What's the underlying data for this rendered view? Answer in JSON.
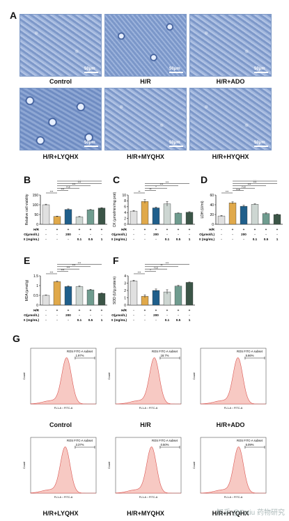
{
  "panel_labels": {
    "A": "A",
    "B": "B",
    "C": "C",
    "D": "D",
    "E": "E",
    "F": "F",
    "G": "G"
  },
  "microscopy": {
    "scale": "50μm",
    "images": [
      {
        "label": "Control"
      },
      {
        "label": "H/R"
      },
      {
        "label": "H/R+ADO"
      },
      {
        "label": "H/R+LYQHX"
      },
      {
        "label": "H/R+MYQHX"
      },
      {
        "label": "H/R+HYQHX"
      }
    ]
  },
  "groups": {
    "rows": [
      "H/R",
      "ADO(μmol/L)",
      "YQHX (mg/mL)"
    ],
    "hr": [
      "-",
      "+",
      "+",
      "+",
      "+",
      "+"
    ],
    "ado": [
      "-",
      "-",
      "200",
      "-",
      "-",
      "-"
    ],
    "yqhx": [
      "-",
      "-",
      "-",
      "0.1",
      "0.5",
      "1"
    ]
  },
  "colors": [
    "#e0e0e0",
    "#e0a94a",
    "#1f5f8b",
    "#cdd6d2",
    "#6f9c8f",
    "#3b5547"
  ],
  "chart_data": [
    {
      "type": "bar",
      "panel": "B",
      "ylabel": "Relative cell viability",
      "ylim": [
        0,
        150
      ],
      "ticks": [
        0,
        50,
        100,
        150
      ],
      "values": [
        100,
        40,
        76,
        38,
        74,
        83
      ],
      "errors": [
        3,
        2,
        3,
        2,
        2,
        2
      ],
      "sig": [
        "***",
        "***",
        "n.s",
        "***",
        "***",
        "***"
      ]
    },
    {
      "type": "bar",
      "panel": "C",
      "ylabel": "CK (μmol/min/mg prot)",
      "ylim": [
        0,
        10
      ],
      "ticks": [
        0,
        2,
        4,
        6,
        8,
        10
      ],
      "values": [
        4.5,
        7.8,
        5.6,
        7.0,
        3.8,
        4.1
      ],
      "errors": [
        0.2,
        0.6,
        0.3,
        0.8,
        0.1,
        0.2
      ],
      "sig": [
        "**",
        "**",
        "*",
        "***",
        "***"
      ]
    },
    {
      "type": "bar",
      "panel": "D",
      "ylabel": "LDH (U/ml)",
      "ylim": [
        0,
        60
      ],
      "ticks": [
        0,
        20,
        40,
        60
      ],
      "values": [
        17,
        44,
        37,
        41,
        22,
        20
      ],
      "errors": [
        1,
        2,
        2,
        1,
        2,
        1
      ],
      "sig": [
        "***",
        "n.s",
        "n.s",
        "***",
        "***",
        "***"
      ]
    },
    {
      "type": "bar",
      "panel": "E",
      "ylabel": "MDA (μmol/g)",
      "ylim": [
        0,
        1.5
      ],
      "ticks": [
        0,
        0.5,
        1.0,
        1.5
      ],
      "values": [
        0.5,
        1.2,
        0.95,
        0.95,
        0.78,
        0.6
      ],
      "errors": [
        0.02,
        0.03,
        0.03,
        0.03,
        0.03,
        0.02
      ],
      "sig": [
        "***",
        "***",
        "***",
        "***",
        "***"
      ]
    },
    {
      "type": "bar",
      "panel": "F",
      "ylabel": "SOD (U/g protein)",
      "ylim": [
        0,
        4
      ],
      "ticks": [
        0,
        1,
        2,
        3,
        4
      ],
      "values": [
        3.3,
        1.2,
        2.0,
        1.8,
        2.6,
        3.1
      ],
      "errors": [
        0.1,
        0.2,
        0.2,
        0.3,
        0.1,
        0.05
      ],
      "sig": [
        "***",
        "*",
        "n.s",
        "**",
        "***"
      ]
    }
  ],
  "flow": {
    "ylabel": "Count",
    "xlabel": "FL1-A :: FITC-A",
    "gate_title": "ROS FITC-A subset",
    "panels": [
      {
        "label": "Control",
        "value": "1.97%"
      },
      {
        "label": "H/R",
        "value": "18.7%"
      },
      {
        "label": "H/R+ADO",
        "value": "5.66%"
      },
      {
        "label": "H/R+LYQHX",
        "value": "3.37%"
      },
      {
        "label": "H/R+MYQHX",
        "value": "0.50%"
      },
      {
        "label": "H/R+HYQHX",
        "value": "5.09%"
      }
    ]
  },
  "watermark": "知乎 @Fotiu 药物研究"
}
